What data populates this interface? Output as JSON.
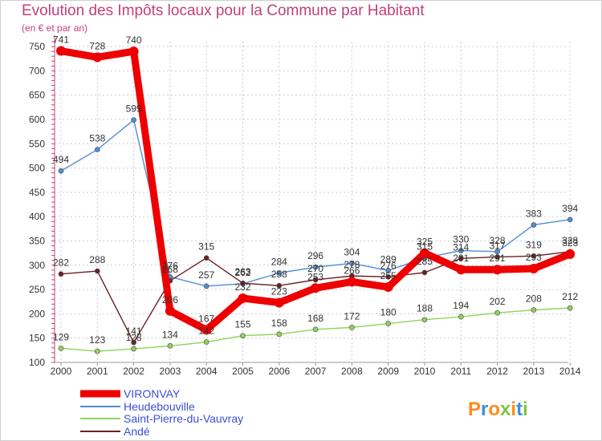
{
  "chart_data": {
    "type": "line",
    "title": "Evolution des Impôts locaux pour la Commune par Habitant",
    "subtitle": "(en € et par an)",
    "xlabel": "",
    "ylabel": "",
    "x": [
      "2000",
      "2001",
      "2002",
      "2003",
      "2004",
      "2005",
      "2006",
      "2007",
      "2008",
      "2009",
      "2010",
      "2011",
      "2012",
      "2013",
      "2014"
    ],
    "ylim": [
      100,
      760
    ],
    "yticks": [
      100,
      150,
      200,
      250,
      300,
      350,
      400,
      450,
      500,
      550,
      600,
      650,
      700,
      750
    ],
    "grid": true,
    "legend_position": "bottom-left",
    "series": [
      {
        "name": "VIRONVAY",
        "color": "#ee0000",
        "values": [
          741,
          728,
          740,
          206,
          167,
          232,
          223,
          253,
          266,
          255,
          325,
          291,
          291,
          293,
          323
        ],
        "labels": [
          "741",
          "728",
          "740",
          "206",
          "167",
          "232",
          "223",
          "253",
          "266",
          "255",
          "325",
          "291",
          "291",
          "293",
          "323"
        ]
      },
      {
        "name": "Heudebouville",
        "color": "#4f8ed4",
        "values": [
          494,
          538,
          599,
          276,
          257,
          262,
          284,
          296,
          304,
          289,
          315,
          330,
          328,
          383,
          394
        ],
        "labels": [
          "494",
          "538",
          "599",
          "276",
          "257",
          "262",
          "284",
          "296",
          "304",
          "289",
          "315",
          "330",
          "328",
          "383",
          "394"
        ]
      },
      {
        "name": "Saint-Pierre-du-Vauvray",
        "color": "#8fd35a",
        "values": [
          129,
          123,
          128,
          134,
          142,
          155,
          158,
          168,
          172,
          180,
          188,
          194,
          202,
          208,
          212
        ],
        "labels": [
          "129",
          "123",
          "128",
          "134",
          "142",
          "155",
          "158",
          "168",
          "172",
          "180",
          "188",
          "194",
          "202",
          "208",
          "212"
        ]
      },
      {
        "name": "Andé",
        "color": "#6b1f25",
        "values": [
          282,
          288,
          141,
          268,
          315,
          263,
          258,
          270,
          278,
          276,
          285,
          314,
          317,
          319,
          328
        ],
        "labels": [
          "282",
          "288",
          "141",
          "268",
          "315",
          "263",
          "258",
          "270",
          "278",
          "276",
          "285",
          "314",
          "317",
          "319",
          "328"
        ]
      }
    ]
  },
  "logo": {
    "text": "Proxiti",
    "colors": [
      "#ff8a1c",
      "#3d8fd9",
      "#ff8a1c",
      "#84c341",
      "#ff8a1c",
      "#3d8fd9",
      "#84c341"
    ]
  }
}
